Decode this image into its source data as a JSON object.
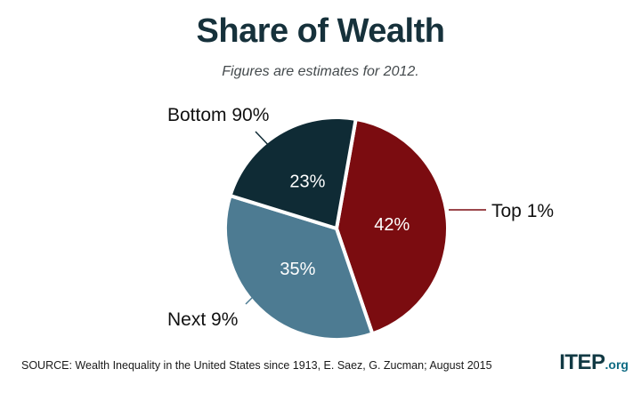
{
  "chart_data": {
    "type": "pie",
    "title": "Share of Wealth",
    "subtitle": "Figures are estimates for 2012.",
    "slices": [
      {
        "label": "Top 1%",
        "value": 42,
        "display": "42%",
        "color": "#7b0c10"
      },
      {
        "label": "Next 9%",
        "value": 35,
        "display": "35%",
        "color": "#4d7b92"
      },
      {
        "label": "Bottom 90%",
        "value": 23,
        "display": "23%",
        "color": "#0f2b35"
      }
    ]
  },
  "footer": {
    "source": "SOURCE: Wealth Inequality in the United States since 1913, E. Saez, G. Zucman; August 2015",
    "logo_main": "ITEP",
    "logo_tld": ".org"
  }
}
